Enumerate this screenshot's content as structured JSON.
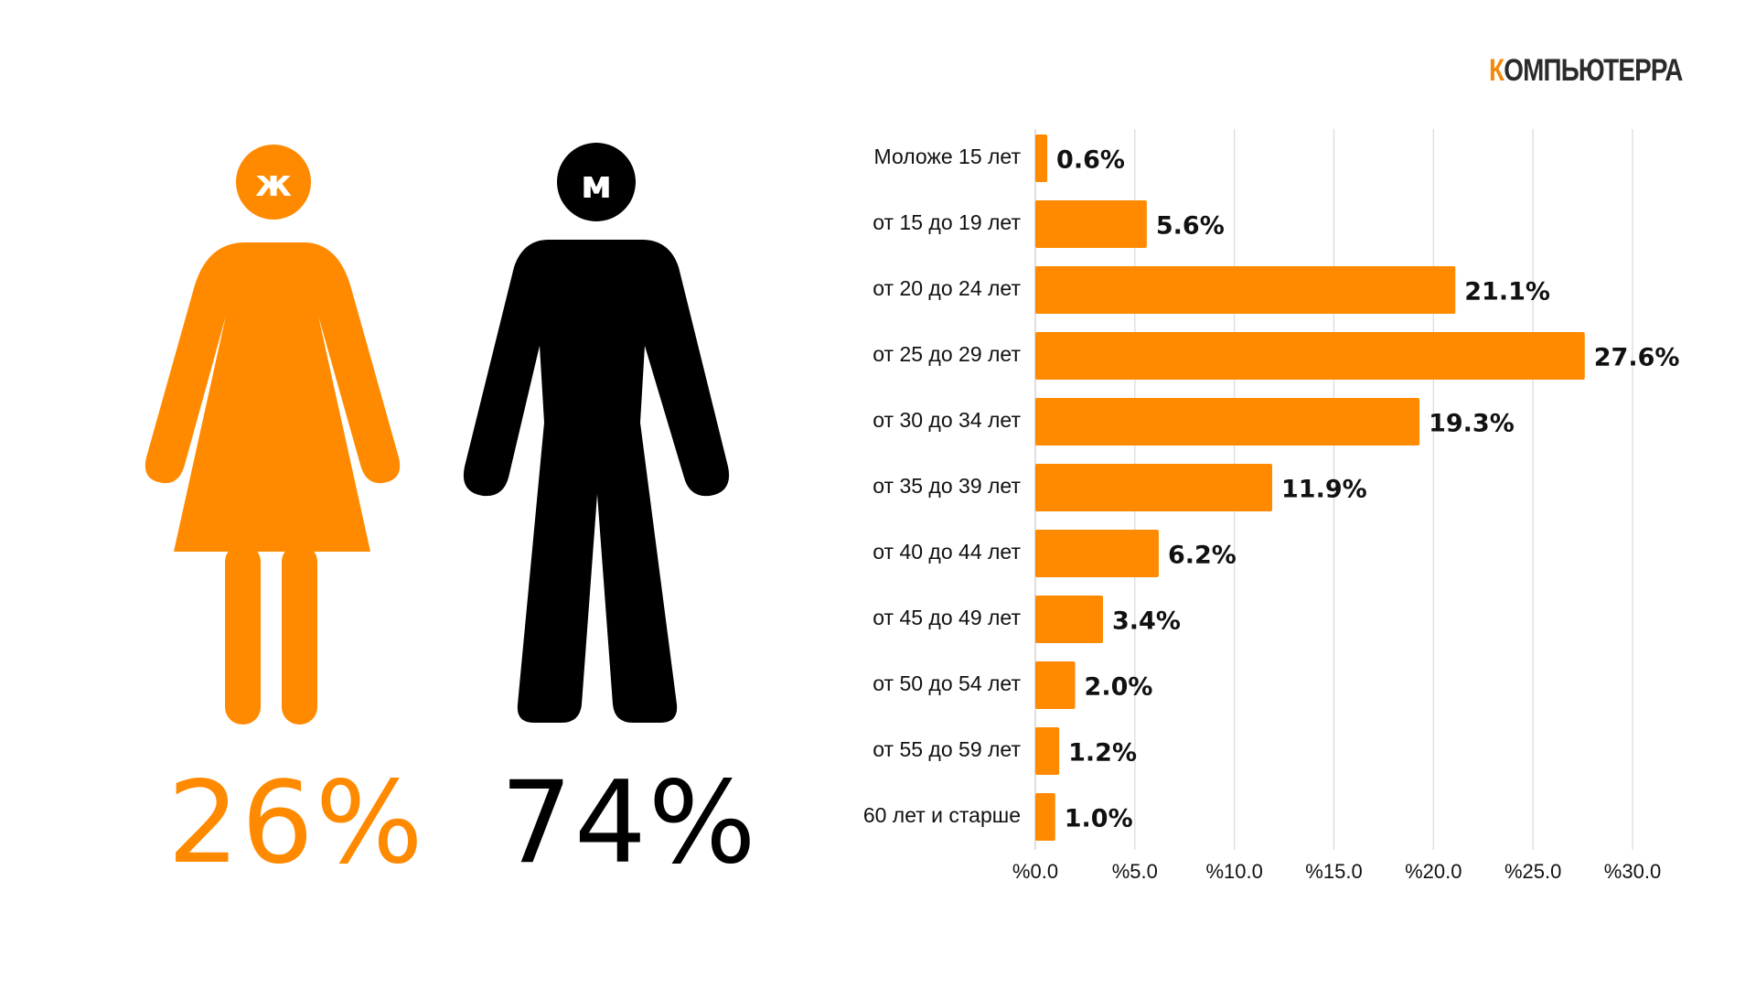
{
  "logo": {
    "accent_letter": "К",
    "rest": "ОМПЬЮТЕРРА"
  },
  "gender": {
    "female": {
      "symbol": "ж",
      "percent": "26%",
      "color": "#ff8a00"
    },
    "male": {
      "symbol": "м",
      "percent": "74%",
      "color": "#000000"
    }
  },
  "chart_data": {
    "type": "bar",
    "orientation": "horizontal",
    "categories": [
      "Моложе 15 лет",
      "от 15 до 19 лет",
      "от 20 до 24 лет",
      "от 25 до 29 лет",
      "от 30 до 34 лет",
      "от 35 до 39 лет",
      "от 40 до 44 лет",
      "от 45 до 49 лет",
      "от 50 до 54 лет",
      "от 55 до 59 лет",
      "60 лет и старше"
    ],
    "values": [
      0.6,
      5.6,
      21.1,
      27.6,
      19.3,
      11.9,
      6.2,
      3.4,
      2.0,
      1.2,
      1.0
    ],
    "value_labels": [
      "0.6%",
      "5.6%",
      "21.1%",
      "27.6%",
      "19.3%",
      "11.9%",
      "6.2%",
      "3.4%",
      "2.0%",
      "1.2%",
      "1.0%"
    ],
    "xlim": [
      0,
      30
    ],
    "xticks": [
      0,
      5,
      10,
      15,
      20,
      25,
      30
    ],
    "xtick_labels": [
      "%0.0",
      "%5.0",
      "%10.0",
      "%15.0",
      "%20.0",
      "%25.0",
      "%30.0"
    ],
    "grid": true,
    "bar_color": "#ff8a00",
    "title": "",
    "xlabel": "",
    "ylabel": ""
  }
}
